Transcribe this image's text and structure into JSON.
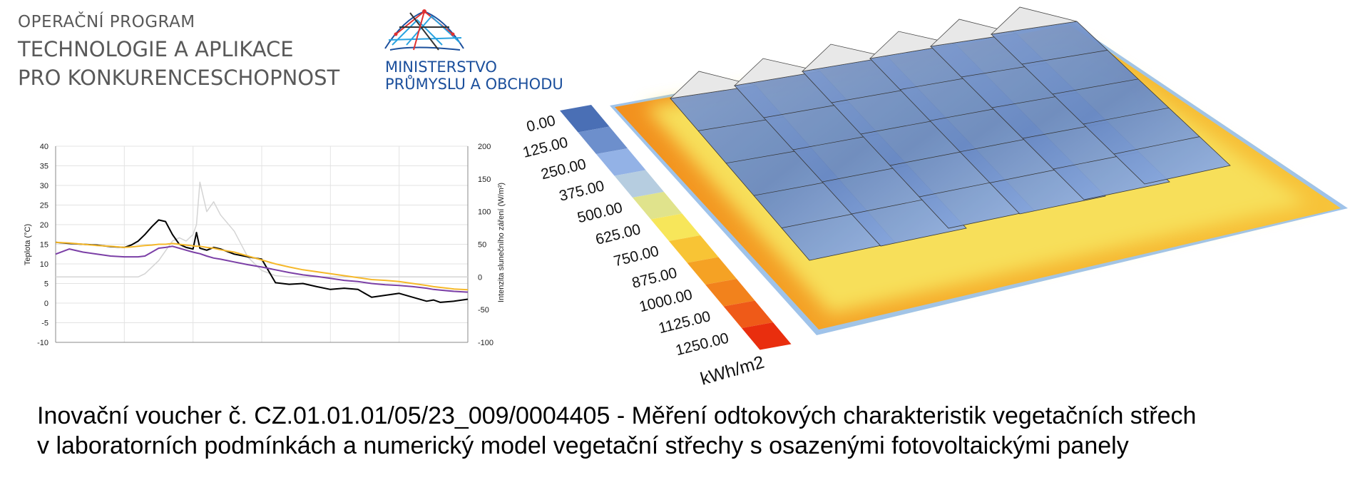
{
  "header": {
    "op_line1": "OPERAČNÍ PROGRAM",
    "op_line2": "TECHNOLOGIE A APLIKACE",
    "op_line3": "PRO KONKURENCESCHOPNOST",
    "ministry_line1": "MINISTERSTVO",
    "ministry_line2": "PRŮMYSLU A OBCHODU",
    "logo_icon": "ministry-globe-logo"
  },
  "chart_data": {
    "type": "line",
    "title": "",
    "ylabel": "Teplota (°C)",
    "y2label": "Intenzita slunečního záření (W/m²)",
    "ylim": [
      -10,
      40
    ],
    "y2lim": [
      -100,
      200
    ],
    "yticks": [
      "40",
      "35",
      "30",
      "25",
      "20",
      "15",
      "10",
      "5",
      "0",
      "-5",
      "-10"
    ],
    "y2ticks": [
      "200",
      "150",
      "100",
      "50",
      "0",
      "-50",
      "-100"
    ],
    "grid": true,
    "x": [
      0,
      2,
      4,
      6,
      8,
      10,
      11,
      12,
      13,
      14,
      15,
      16,
      17,
      18,
      19,
      20,
      20.5,
      21,
      22,
      23,
      24,
      26,
      28,
      30,
      32,
      34,
      36,
      38,
      40,
      42,
      44,
      46,
      48,
      50,
      52,
      54,
      55,
      56,
      58,
      60
    ],
    "series": [
      {
        "color": "#000000",
        "axis": "left",
        "values": [
          15.5,
          15.2,
          15,
          14.8,
          14.4,
          14.2,
          14.8,
          15.8,
          17.5,
          19.5,
          21.2,
          20.8,
          17.5,
          15,
          14.2,
          13.8,
          18,
          14,
          13.5,
          14.2,
          13.8,
          12.5,
          11.8,
          11.2,
          5.2,
          4.8,
          5,
          4.2,
          3.5,
          3.8,
          3.5,
          1.5,
          2,
          2.5,
          1.5,
          0.5,
          0.8,
          0.2,
          0.5,
          1
        ]
      },
      {
        "color": "#f5b82a",
        "axis": "left",
        "values": [
          15.5,
          15.3,
          15,
          14.7,
          14.5,
          14.2,
          14.3,
          14.5,
          14.7,
          14.8,
          15,
          15,
          15.2,
          15,
          14.8,
          14.6,
          14.5,
          14.5,
          14.2,
          14,
          13.6,
          13,
          12,
          11,
          10,
          9.2,
          8.5,
          8,
          7.5,
          7,
          6.5,
          6,
          5.8,
          5.5,
          5,
          4.5,
          4.2,
          4,
          3.6,
          3.4
        ]
      },
      {
        "color": "#7b3fa6",
        "axis": "left",
        "values": [
          12.5,
          13.8,
          13,
          12.5,
          12,
          11.8,
          11.8,
          11.8,
          12,
          13,
          14,
          14.2,
          14.5,
          14,
          13.5,
          13,
          12.8,
          12.6,
          12,
          11.5,
          11.2,
          10.5,
          9.8,
          9.2,
          8.5,
          7.8,
          7.2,
          6.8,
          6.3,
          5.8,
          5.5,
          5,
          4.7,
          4.5,
          4.2,
          3.8,
          3.5,
          3.3,
          3,
          2.8
        ]
      },
      {
        "color": "#d4d4d4",
        "axis": "right",
        "values": [
          0,
          0,
          0,
          0,
          0,
          0,
          0,
          0,
          5,
          15,
          25,
          40,
          55,
          60,
          55,
          65,
          80,
          145,
          100,
          115,
          95,
          70,
          30,
          10,
          2,
          0,
          0,
          0,
          0,
          0,
          0,
          0,
          0,
          0,
          0,
          0,
          0,
          0,
          0,
          0
        ]
      }
    ]
  },
  "simulation": {
    "legend_values": [
      "0.00",
      "125.00",
      "250.00",
      "375.00",
      "500.00",
      "625.00",
      "750.00",
      "875.00",
      "1000.00",
      "1125.00",
      "1250.00"
    ],
    "legend_colors": [
      "#4a6fb5",
      "#6d8fcc",
      "#93b2e6",
      "#b6cde0",
      "#e0e38c",
      "#f7e65a",
      "#f8c435",
      "#f5a224",
      "#f2821c",
      "#ef5a18",
      "#e92e0e"
    ],
    "unit": "kWh/m2"
  },
  "caption": {
    "line1": "Inovační voucher č. CZ.01.01.01/05/23_009/0004405 - Měření odtokových charakteristik vegetačních střech",
    "line2": "v laboratorních podmínkách a numerický model vegetační střechy s osazenými fotovoltaickými panely"
  }
}
